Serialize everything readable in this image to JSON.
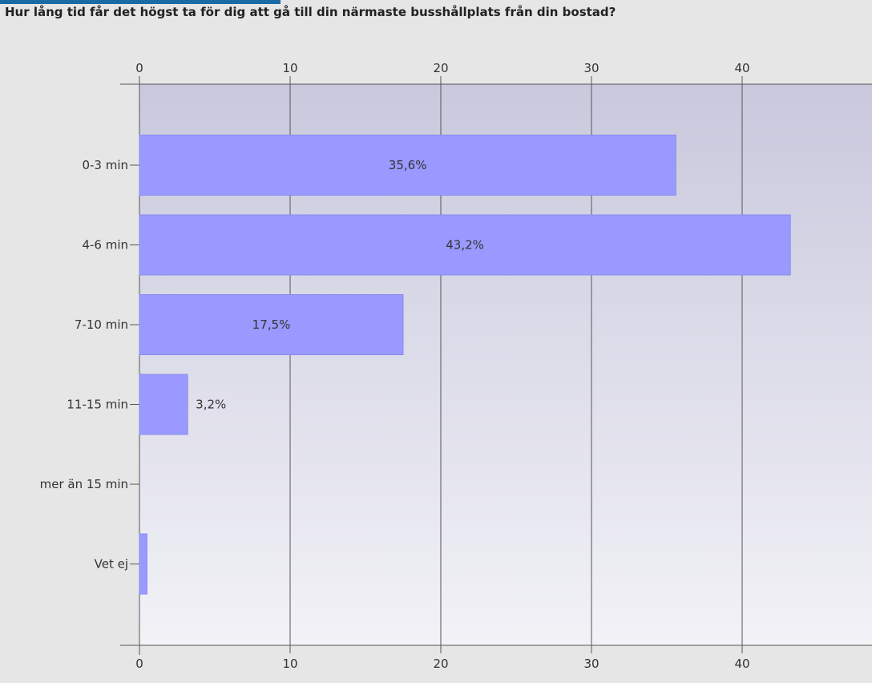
{
  "question": "Hur lång tid får det högst ta för dig att gå till din närmaste busshållplats från din bostad?",
  "colors": {
    "accent_strip": "#1a6aa6",
    "bar": "#9999ff",
    "bar_stroke": "#8a8aee",
    "grid": "#555555",
    "plot_top": "#c9c8dd",
    "plot_bottom": "#f2f2f7"
  },
  "chart_data": {
    "type": "bar",
    "orientation": "horizontal",
    "title": "Hur lång tid får det högst ta för dig att gå till din närmaste busshållplats från din bostad?",
    "categories": [
      "0-3 min",
      "4-6 min",
      "7-10 min",
      "11-15 min",
      "mer än 15 min",
      "Vet ej"
    ],
    "values": [
      35.6,
      43.2,
      17.5,
      3.2,
      0,
      0.5
    ],
    "data_labels": [
      "35,6%",
      "43,2%",
      "17,5%",
      "3,2%",
      "",
      ""
    ],
    "xlim": [
      0,
      48.5
    ],
    "xticks": [
      0,
      10,
      20,
      30,
      40
    ],
    "xtick_labels": [
      "0",
      "10",
      "20",
      "30",
      "40"
    ],
    "xaxis_position": "top and bottom",
    "grid": true,
    "legend": "none"
  }
}
